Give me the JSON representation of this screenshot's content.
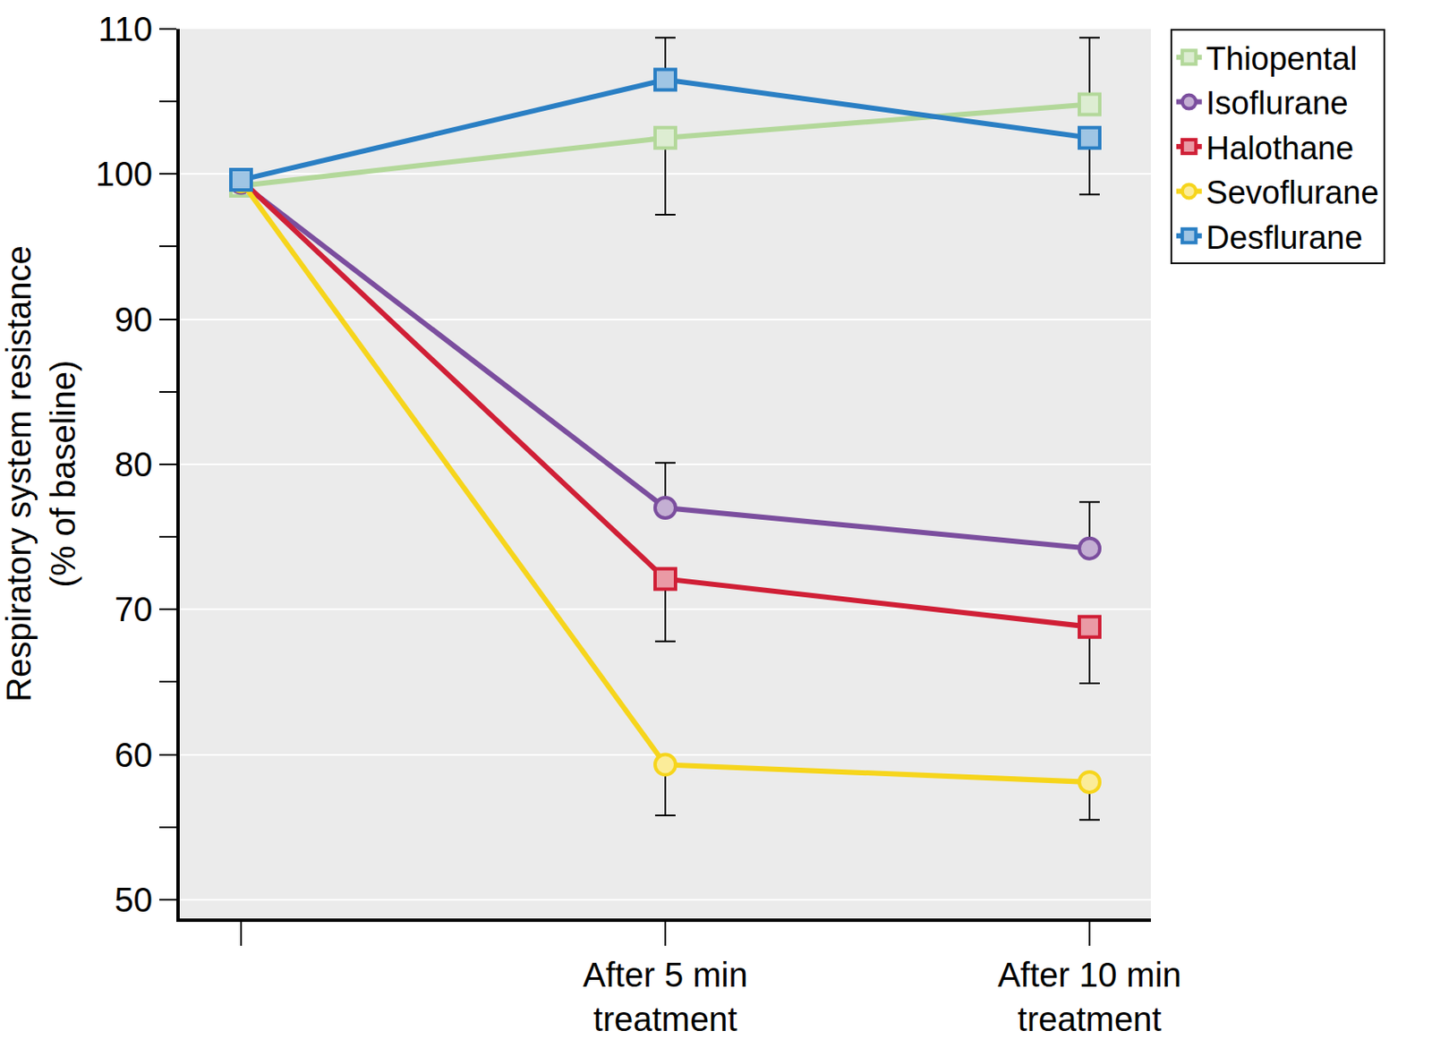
{
  "chart_data": {
    "type": "line",
    "categories": [
      null,
      "After 5 min\ntreatment",
      "After 10 min\ntreatment"
    ],
    "y_label": "Respiratory system resistance\n(% of baseline)",
    "ylim": [
      48.7,
      110
    ],
    "yticks": [
      50,
      60,
      70,
      80,
      90,
      100,
      110
    ],
    "grid": true,
    "legend": "upper right",
    "series": [
      {
        "name": "Thiopental",
        "color": "#b3d89a",
        "marker": "square",
        "values": [
          99.2,
          102.5,
          104.8
        ],
        "error_plus": [
          null,
          null,
          4.6
        ],
        "error_minus": [
          null,
          5.3,
          null
        ]
      },
      {
        "name": "Isoflurane",
        "color": "#7b4e9e",
        "marker": "circle",
        "values": [
          99.4,
          77.0,
          74.2
        ],
        "error_plus": [
          null,
          3.1,
          3.2
        ],
        "error_minus": [
          null,
          null,
          null
        ]
      },
      {
        "name": "Halothane",
        "color": "#d01f36",
        "marker": "square",
        "values": [
          99.6,
          72.1,
          68.8
        ],
        "error_plus": [
          null,
          null,
          null
        ],
        "error_minus": [
          null,
          4.3,
          3.9
        ]
      },
      {
        "name": "Sevoflurane",
        "color": "#f6d51c",
        "marker": "circle",
        "values": [
          99.5,
          59.3,
          58.1
        ],
        "error_plus": [
          null,
          null,
          null
        ],
        "error_minus": [
          null,
          3.5,
          2.6
        ]
      },
      {
        "name": "Desflurane",
        "color": "#2a7fc4",
        "marker": "square",
        "values": [
          99.6,
          106.5,
          102.5
        ],
        "error_plus": [
          null,
          2.9,
          null
        ],
        "error_minus": [
          null,
          null,
          3.9
        ]
      }
    ]
  }
}
